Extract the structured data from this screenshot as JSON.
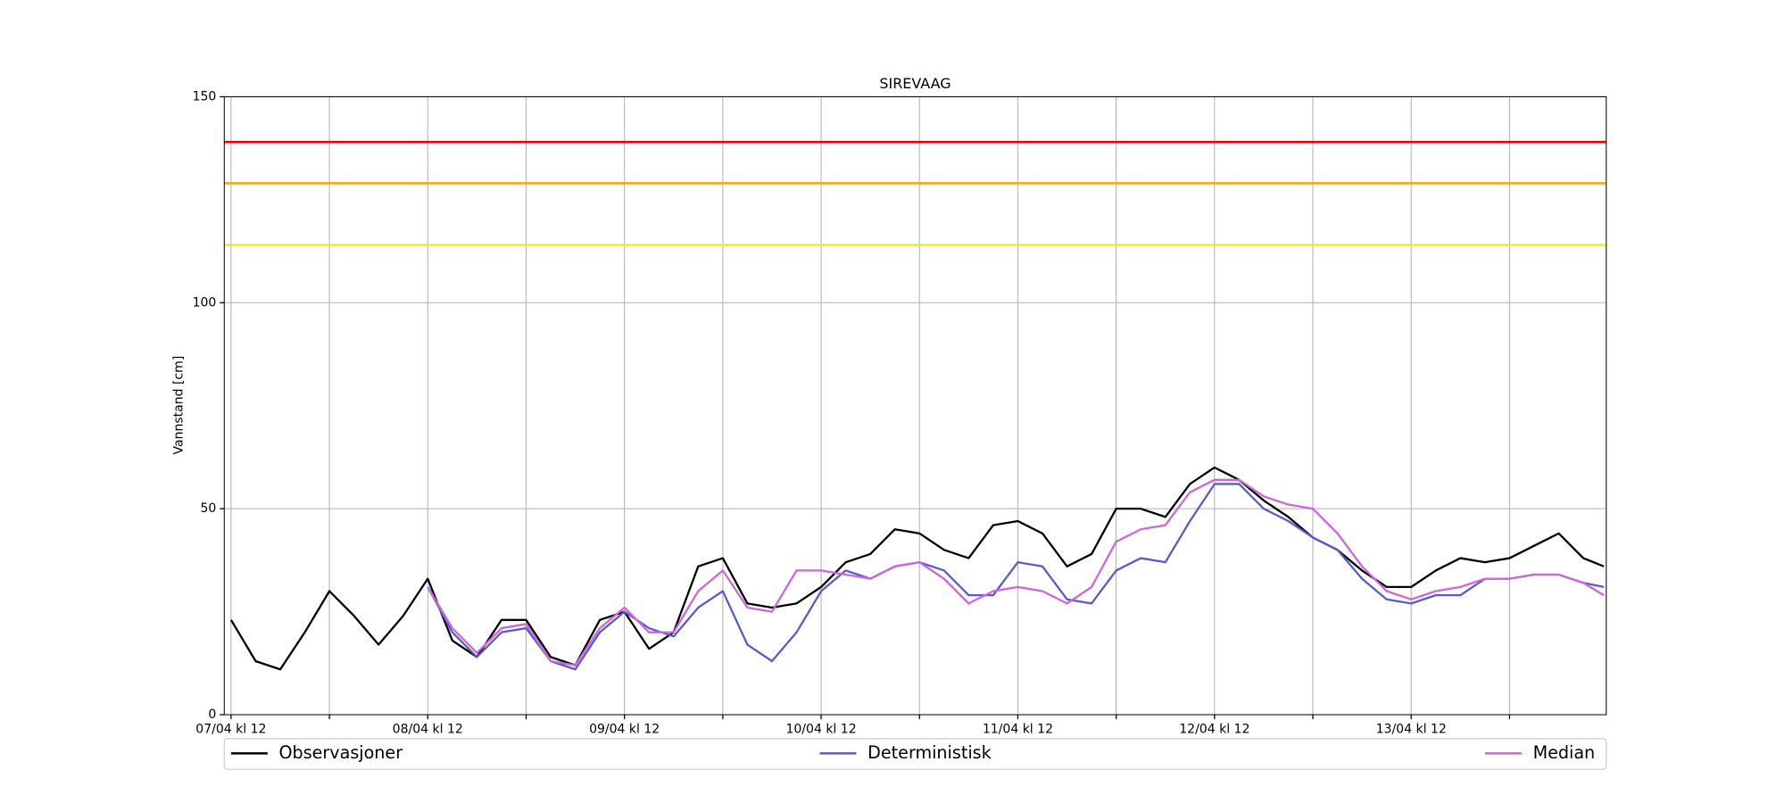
{
  "chart_data": {
    "type": "line",
    "title": "SIREVAAG",
    "y_label": "Vannstand [cm]",
    "x": [
      0,
      3,
      6,
      9,
      12,
      15,
      18,
      21,
      24,
      27,
      30,
      33,
      36,
      39,
      42,
      45,
      48,
      51,
      54,
      57,
      60,
      63,
      66,
      69,
      72,
      75,
      78,
      81,
      84,
      87,
      90,
      93,
      96,
      99,
      102,
      105,
      108,
      111,
      114,
      117,
      120,
      123,
      126,
      129,
      132,
      135,
      138,
      141,
      144,
      147,
      150,
      153,
      156,
      159,
      162,
      165,
      167.5
    ],
    "series": [
      {
        "name": "Observasjoner",
        "color": "#000000",
        "values": [
          23,
          13,
          11,
          20,
          30,
          24,
          17,
          24,
          33,
          18,
          14,
          23,
          23,
          14,
          12,
          23,
          25,
          16,
          20,
          36,
          38,
          27,
          26,
          27,
          31,
          37,
          39,
          45,
          44,
          40,
          38,
          46,
          47,
          44,
          36,
          39,
          50,
          50,
          48,
          56,
          60,
          57,
          52,
          48,
          43,
          40,
          35,
          31,
          31,
          35,
          38,
          37,
          38,
          41,
          44,
          38,
          36
        ]
      },
      {
        "name": "Deterministisk",
        "color": "#5a5ad0",
        "values": [
          null,
          null,
          null,
          null,
          null,
          null,
          null,
          null,
          31,
          20,
          14,
          20,
          21,
          13,
          11,
          20,
          25,
          21,
          19,
          26,
          30,
          17,
          13,
          20,
          30,
          35,
          33,
          36,
          37,
          35,
          29,
          29,
          37,
          36,
          28,
          27,
          35,
          38,
          37,
          47,
          56,
          56,
          50,
          47,
          43,
          40,
          33,
          28,
          27,
          29,
          29,
          33,
          33,
          34,
          34,
          32,
          31
        ]
      },
      {
        "name": "Median",
        "color": "#cc66d9",
        "values": [
          null,
          null,
          null,
          null,
          null,
          null,
          null,
          null,
          31,
          21,
          15,
          21,
          22,
          13,
          12,
          21,
          26,
          20,
          20,
          30,
          35,
          26,
          25,
          35,
          35,
          34,
          33,
          36,
          37,
          33,
          27,
          30,
          31,
          30,
          27,
          31,
          42,
          45,
          46,
          54,
          57,
          57,
          53,
          51,
          50,
          44,
          36,
          30,
          28,
          30,
          31,
          33,
          33,
          34,
          34,
          32,
          29
        ]
      }
    ],
    "thresholds": [
      {
        "value": 139,
        "color": "#ee0000"
      },
      {
        "value": 129,
        "color": "#ffa500"
      },
      {
        "value": 114,
        "color": "#f2f200"
      }
    ],
    "xlim": [
      -0.83,
      167.8
    ],
    "xticks": [
      {
        "value": 0,
        "label": "07/04 kl 12"
      },
      {
        "value": 24,
        "label": "08/04 kl 12"
      },
      {
        "value": 48,
        "label": "09/04 kl 12"
      },
      {
        "value": 72,
        "label": "10/04 kl 12"
      },
      {
        "value": 96,
        "label": "11/04 kl 12"
      },
      {
        "value": 120,
        "label": "12/04 kl 12"
      },
      {
        "value": 144,
        "label": "13/04 kl 12"
      }
    ],
    "xminor_ticks": [
      12,
      36,
      60,
      84,
      108,
      132,
      156
    ],
    "ylim": [
      0,
      150
    ],
    "yticks": [
      0,
      50,
      100,
      150
    ],
    "grid": true,
    "legend": "below"
  }
}
